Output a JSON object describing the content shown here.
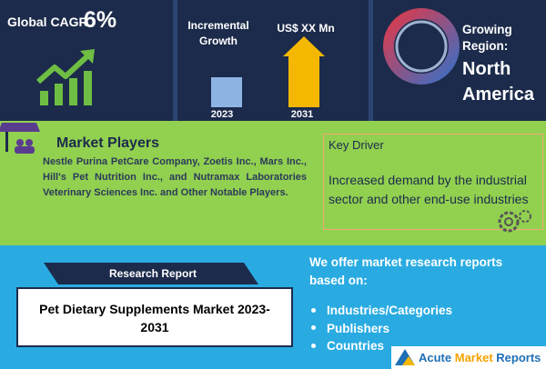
{
  "cagr": {
    "label": "Global CAGR",
    "value": "6%"
  },
  "growth": {
    "label": "Incremental Growth",
    "amount": "US$ XX Mn",
    "start_year": "2023",
    "end_year": "2031"
  },
  "region": {
    "label": "Growing Region:",
    "name": "North America"
  },
  "players": {
    "title": "Market Players",
    "text": "Nestle Purina PetCare Company, Zoetis Inc., Mars Inc., Hill's Pet Nutrition Inc., and Nutramax Laboratories Veterinary Sciences Inc. and Other Notable Players."
  },
  "driver": {
    "title": "Key Driver",
    "text": "Increased demand by the industrial sector and other end-use industries"
  },
  "report": {
    "label": "Research Report",
    "title": "Pet Dietary Supplements Market 2023-2031"
  },
  "offer": {
    "intro": "We offer market research reports based on:",
    "items": [
      "Industries/Categories",
      "Publishers",
      "Countries"
    ]
  },
  "logo": {
    "words": [
      "Acute",
      "Market",
      "Reports"
    ]
  }
}
